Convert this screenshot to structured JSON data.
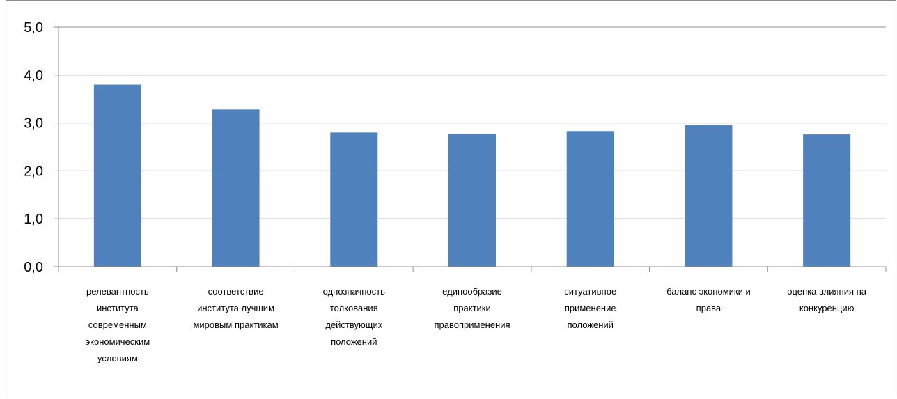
{
  "chart_data": {
    "type": "bar",
    "categories": [
      [
        "релевантность",
        "института",
        "современным",
        "экономическим",
        "условиям"
      ],
      [
        "соответствие",
        "института лучшим",
        "мировым практикам"
      ],
      [
        "однозначность",
        "толкования",
        "действующих",
        "положений"
      ],
      [
        "единообразие",
        "практики",
        "правоприменения"
      ],
      [
        "ситуативное",
        "применение",
        "положений"
      ],
      [
        "баланс экономики и",
        "права"
      ],
      [
        "оценка влияния на",
        "конкуренцию"
      ]
    ],
    "values": [
      3.8,
      3.28,
      2.8,
      2.77,
      2.83,
      2.95,
      2.76
    ],
    "ylim": [
      0,
      5
    ],
    "yticks": [
      "0,0",
      "1,0",
      "2,0",
      "3,0",
      "4,0",
      "5,0"
    ],
    "grid": true,
    "legend": "none",
    "colors": {
      "bar": "#4F81BD",
      "grid": "#8c8c8c",
      "axis": "#8c8c8c"
    }
  }
}
